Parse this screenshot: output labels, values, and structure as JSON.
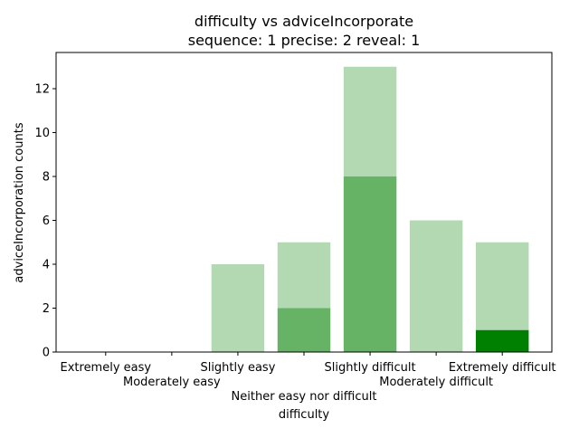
{
  "chart_data": {
    "type": "bar",
    "stacked": true,
    "title": "difficulty vs adviceIncorporate",
    "subtitle": "sequence: 1  precise: 2  reveal: 1",
    "xlabel": "difficulty",
    "ylabel": "adviceIncorporation counts",
    "categories": [
      "Extremely easy",
      "Moderately easy",
      "Slightly easy",
      "Neither easy nor difficult",
      "Slightly difficult",
      "Moderately difficult",
      "Extremely difficult"
    ],
    "series": [
      {
        "color": "#008000",
        "opacity": 1.0,
        "values": [
          0,
          0,
          0,
          0,
          0,
          0,
          1
        ]
      },
      {
        "color": "#008000",
        "opacity": 0.6,
        "values": [
          0,
          0,
          0,
          2,
          8,
          0,
          0
        ]
      },
      {
        "color": "#008000",
        "opacity": 0.3,
        "values": [
          0,
          0,
          4,
          3,
          5,
          6,
          4
        ]
      }
    ],
    "ylim": [
      0,
      13.65
    ],
    "yticks": [
      0,
      2,
      4,
      6,
      8,
      10,
      12
    ],
    "grid": false,
    "legend": "none"
  }
}
